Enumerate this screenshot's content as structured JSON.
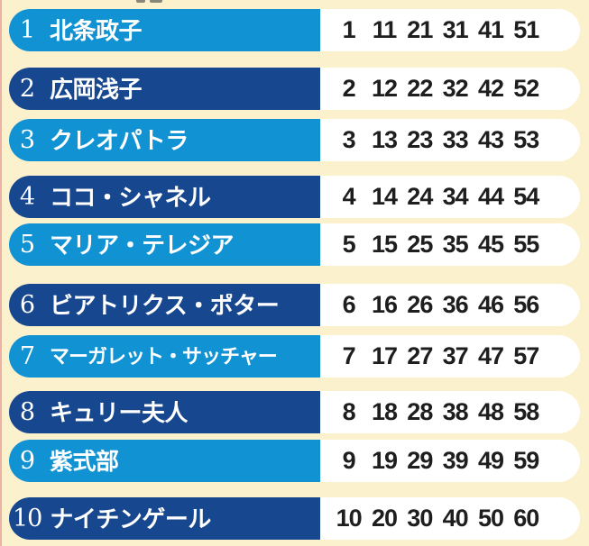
{
  "page": {
    "background_color": "#FBF1CD",
    "edge_artifact_color": "#E9A79F"
  },
  "ranking": {
    "colors": {
      "light_blue": "#1193D3",
      "dark_blue": "#17478F",
      "pill_white": "#FFFFFF",
      "rank_text": "#FFFFFF",
      "name_text": "#FFFFFF",
      "number_text": "#1E1E1E"
    },
    "rows": [
      {
        "rank": "1",
        "name": "北条政子",
        "tone": "light",
        "numbers": [
          "1",
          "11",
          "21",
          "31",
          "41",
          "51"
        ]
      },
      {
        "rank": "2",
        "name": "広岡浅子",
        "tone": "dark",
        "numbers": [
          "2",
          "12",
          "22",
          "32",
          "42",
          "52"
        ]
      },
      {
        "rank": "3",
        "name": "クレオパトラ",
        "tone": "light",
        "numbers": [
          "3",
          "13",
          "23",
          "33",
          "43",
          "53"
        ]
      },
      {
        "rank": "4",
        "name": "ココ・シャネル",
        "tone": "dark",
        "numbers": [
          "4",
          "14",
          "24",
          "34",
          "44",
          "54"
        ]
      },
      {
        "rank": "5",
        "name": "マリア・テレジア",
        "tone": "light",
        "numbers": [
          "5",
          "15",
          "25",
          "35",
          "45",
          "55"
        ]
      },
      {
        "rank": "6",
        "name": "ビアトリクス・ポター",
        "tone": "dark",
        "numbers": [
          "6",
          "16",
          "26",
          "36",
          "46",
          "56"
        ]
      },
      {
        "rank": "7",
        "name": "マーガレット・サッチャー",
        "tone": "light",
        "numbers": [
          "7",
          "17",
          "27",
          "37",
          "47",
          "57"
        ]
      },
      {
        "rank": "8",
        "name": "キュリー夫人",
        "tone": "dark",
        "numbers": [
          "8",
          "18",
          "28",
          "38",
          "48",
          "58"
        ]
      },
      {
        "rank": "9",
        "name": "紫式部",
        "tone": "light",
        "numbers": [
          "9",
          "19",
          "29",
          "39",
          "49",
          "59"
        ]
      },
      {
        "rank": "10",
        "name": "ナイチンゲール",
        "tone": "dark",
        "numbers": [
          "10",
          "20",
          "30",
          "40",
          "50",
          "60"
        ]
      }
    ]
  }
}
